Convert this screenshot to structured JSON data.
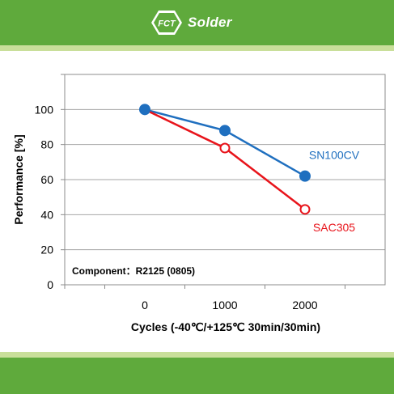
{
  "brand": {
    "logo_text": "FCT",
    "name": "Solder",
    "colors": {
      "band": "#5faa3c",
      "stripe": "#c9df9a"
    }
  },
  "chart_data": {
    "type": "line",
    "title": "",
    "xlabel": "Cycles (-40℃/+125℃  30min/30min)",
    "ylabel": "Performance [%]",
    "x": [
      0,
      1000,
      2000
    ],
    "xticks": [
      "0",
      "1000",
      "2000"
    ],
    "xlim": [
      -1000,
      3000
    ],
    "ylim": [
      0,
      120
    ],
    "yticks": [
      0,
      20,
      40,
      60,
      80,
      100
    ],
    "grid": true,
    "annotation": "Component：R2125 (0805)",
    "series": [
      {
        "name": "SN100CV",
        "values": [
          100,
          88,
          62
        ],
        "color": "#1f6fbf",
        "marker": "filled-circle"
      },
      {
        "name": "SAC305",
        "values": [
          100,
          78,
          43
        ],
        "color": "#e8141b",
        "marker": "hollow-circle"
      }
    ]
  }
}
